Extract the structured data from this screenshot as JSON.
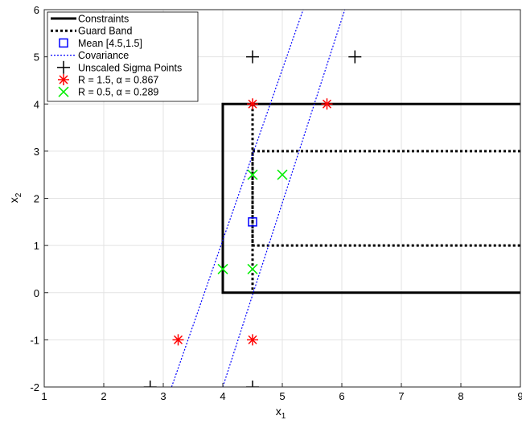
{
  "chart_data": {
    "type": "line",
    "title": "",
    "xlabel": "x",
    "xlabel_sub": "1",
    "ylabel": "x",
    "ylabel_sub": "2",
    "xlim": [
      1,
      9
    ],
    "ylim": [
      -2,
      6
    ],
    "xticks": [
      1,
      2,
      3,
      4,
      5,
      6,
      7,
      8,
      9
    ],
    "yticks": [
      -2,
      -1,
      0,
      1,
      2,
      3,
      4,
      5,
      6
    ],
    "grid": true,
    "legend_position": "top-left",
    "legend": [
      {
        "label": "Constraints",
        "style": "solid-line",
        "color": "#000000"
      },
      {
        "label": "Guard Band",
        "style": "dotted-line",
        "color": "#000000"
      },
      {
        "label": "Mean [4.5,1.5]",
        "style": "square",
        "color": "#0000ff"
      },
      {
        "label": "Covariance",
        "style": "dotted-line-thin",
        "color": "#0000ff"
      },
      {
        "label": "Unscaled Sigma Points",
        "style": "plus",
        "color": "#000000"
      },
      {
        "label": "R = 1.5, α = 0.867",
        "style": "star",
        "color": "#ff0000"
      },
      {
        "label": "R = 0.5, α = 0.289",
        "style": "x",
        "color": "#00ee00"
      }
    ],
    "series": [
      {
        "name": "Constraints",
        "color": "#000000",
        "x": [
          9,
          4,
          4,
          9
        ],
        "y": [
          4,
          4,
          0,
          0
        ]
      },
      {
        "name": "Guard Band",
        "color": "#000000",
        "x": [
          9,
          4.5,
          4.5,
          9
        ],
        "y": [
          3,
          3,
          1,
          1
        ],
        "extra_segment": {
          "x": [
            4.5,
            4.5
          ],
          "y": [
            4,
            0
          ]
        }
      },
      {
        "name": "Covariance",
        "color": "#0000ff",
        "lines": [
          {
            "x": [
              3.14,
              5.35
            ],
            "y": [
              -2,
              6
            ]
          },
          {
            "x": [
              4.0,
              6.05
            ],
            "y": [
              -2,
              6
            ]
          }
        ]
      },
      {
        "name": "Mean [4.5,1.5]",
        "color": "#0000ff",
        "points": [
          [
            4.5,
            1.5
          ]
        ]
      },
      {
        "name": "Unscaled Sigma Points",
        "color": "#000000",
        "points": [
          [
            2.78,
            -2
          ],
          [
            4.5,
            -2
          ],
          [
            4.5,
            5
          ],
          [
            6.22,
            5
          ]
        ]
      },
      {
        "name": "R = 1.5, α = 0.867",
        "color": "#ff0000",
        "points": [
          [
            3.25,
            -1
          ],
          [
            4.5,
            -1
          ],
          [
            4.5,
            4
          ],
          [
            5.75,
            4
          ]
        ]
      },
      {
        "name": "R = 0.5, α = 0.289",
        "color": "#00ee00",
        "points": [
          [
            4.0,
            0.5
          ],
          [
            4.5,
            0.5
          ],
          [
            4.5,
            2.5
          ],
          [
            5.0,
            2.5
          ]
        ]
      }
    ]
  }
}
